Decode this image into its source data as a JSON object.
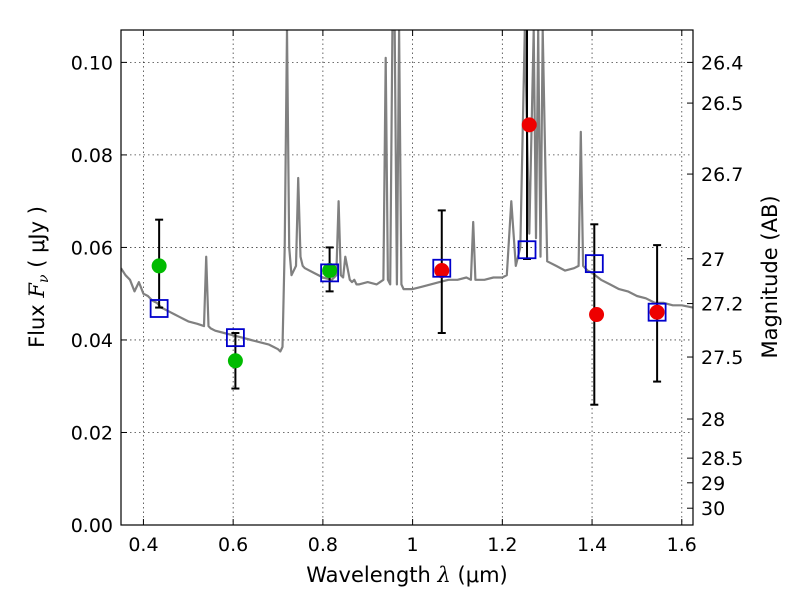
{
  "chart_data": {
    "type": "scatter",
    "xlabel": "Wavelength",
    "xlabel_symbol": "λ",
    "xlabel_unit": "(μm)",
    "ylabel": "Flux",
    "ylabel_symbol": "F",
    "ylabel_sub": "ν",
    "ylabel_unit": "( μJy )",
    "y2label": "Magnitude (AB)",
    "xlim": [
      0.35,
      1.625
    ],
    "ylim": [
      0.0,
      0.107
    ],
    "grid": true,
    "x_ticks": [
      {
        "value": 0.4,
        "label": "0.4"
      },
      {
        "value": 0.6,
        "label": "0.6"
      },
      {
        "value": 0.8,
        "label": "0.8"
      },
      {
        "value": 1.0,
        "label": "1"
      },
      {
        "value": 1.2,
        "label": "1.2"
      },
      {
        "value": 1.4,
        "label": "1.4"
      },
      {
        "value": 1.6,
        "label": "1.6"
      }
    ],
    "y_ticks": [
      {
        "value": 0.0,
        "label": "0.00"
      },
      {
        "value": 0.02,
        "label": "0.02"
      },
      {
        "value": 0.04,
        "label": "0.04"
      },
      {
        "value": 0.06,
        "label": "0.06"
      },
      {
        "value": 0.08,
        "label": "0.08"
      },
      {
        "value": 0.1,
        "label": "0.10"
      }
    ],
    "y2_ticks": [
      {
        "mag": 26.4,
        "label": "26.4"
      },
      {
        "mag": 26.5,
        "label": "26.5"
      },
      {
        "mag": 26.7,
        "label": "26.7"
      },
      {
        "mag": 27.0,
        "label": "27"
      },
      {
        "mag": 27.2,
        "label": "27.2"
      },
      {
        "mag": 27.5,
        "label": "27.5"
      },
      {
        "mag": 28.0,
        "label": "28"
      },
      {
        "mag": 28.5,
        "label": "28.5"
      },
      {
        "mag": 29.0,
        "label": "29"
      },
      {
        "mag": 30.0,
        "label": "30"
      }
    ],
    "series": [
      {
        "type": "line",
        "color": "#808080",
        "x": [
          0.35,
          0.36,
          0.37,
          0.38,
          0.39,
          0.4,
          0.41,
          0.42,
          0.43,
          0.44,
          0.45,
          0.46,
          0.47,
          0.48,
          0.49,
          0.5,
          0.52,
          0.535,
          0.54,
          0.545,
          0.55,
          0.56,
          0.58,
          0.6,
          0.62,
          0.64,
          0.66,
          0.68,
          0.69,
          0.7,
          0.705,
          0.71,
          0.715,
          0.72,
          0.725,
          0.73,
          0.74,
          0.745,
          0.75,
          0.755,
          0.76,
          0.78,
          0.8,
          0.82,
          0.83,
          0.835,
          0.84,
          0.845,
          0.85,
          0.86,
          0.865,
          0.87,
          0.875,
          0.88,
          0.9,
          0.92,
          0.935,
          0.94,
          0.945,
          0.95,
          0.955,
          0.96,
          0.965,
          0.97,
          0.975,
          0.98,
          1.0,
          1.02,
          1.04,
          1.06,
          1.08,
          1.1,
          1.12,
          1.13,
          1.135,
          1.14,
          1.16,
          1.18,
          1.2,
          1.21,
          1.22,
          1.23,
          1.24,
          1.25,
          1.26,
          1.27,
          1.275,
          1.28,
          1.285,
          1.29,
          1.3,
          1.32,
          1.34,
          1.36,
          1.37,
          1.375,
          1.38,
          1.39,
          1.4,
          1.42,
          1.44,
          1.46,
          1.48,
          1.5,
          1.52,
          1.54,
          1.56,
          1.58,
          1.6,
          1.625
        ],
        "y": [
          0.0555,
          0.054,
          0.053,
          0.0505,
          0.0525,
          0.05,
          0.0495,
          0.0485,
          0.048,
          0.047,
          0.0465,
          0.046,
          0.0455,
          0.045,
          0.0445,
          0.044,
          0.0435,
          0.043,
          0.058,
          0.043,
          0.0425,
          0.042,
          0.0415,
          0.041,
          0.0405,
          0.04,
          0.0395,
          0.039,
          0.0385,
          0.038,
          0.0375,
          0.0385,
          0.06,
          0.107,
          0.06,
          0.054,
          0.056,
          0.075,
          0.058,
          0.056,
          0.0555,
          0.0545,
          0.0535,
          0.053,
          0.054,
          0.07,
          0.054,
          0.0535,
          0.058,
          0.053,
          0.0525,
          0.053,
          0.052,
          0.052,
          0.0525,
          0.052,
          0.053,
          0.101,
          0.053,
          0.052,
          0.107,
          0.107,
          0.052,
          0.107,
          0.052,
          0.051,
          0.051,
          0.0515,
          0.052,
          0.0525,
          0.053,
          0.053,
          0.0535,
          0.053,
          0.0655,
          0.053,
          0.053,
          0.0535,
          0.0535,
          0.054,
          0.07,
          0.056,
          0.06,
          0.107,
          0.063,
          0.107,
          0.062,
          0.107,
          0.058,
          0.107,
          0.057,
          0.056,
          0.055,
          0.0555,
          0.056,
          0.085,
          0.056,
          0.055,
          0.0545,
          0.053,
          0.052,
          0.051,
          0.0505,
          0.0495,
          0.049,
          0.048,
          0.048,
          0.0475,
          0.0475,
          0.047
        ]
      },
      {
        "type": "scatter",
        "marker": "circle",
        "color": "#00bb00",
        "x": [
          0.435,
          0.605,
          0.815
        ],
        "y": [
          0.056,
          0.0355,
          0.055
        ]
      },
      {
        "type": "scatter",
        "marker": "circle",
        "color": "#ee0000",
        "x": [
          1.065,
          1.26,
          1.41,
          1.545
        ],
        "y": [
          0.055,
          0.0865,
          0.0455,
          0.046
        ]
      },
      {
        "type": "scatter",
        "marker": "square-open",
        "color": "#0000cc",
        "x": [
          0.435,
          0.605,
          0.815,
          1.065,
          1.255,
          1.405,
          1.545
        ],
        "y": [
          0.0468,
          0.0405,
          0.0545,
          0.0555,
          0.0595,
          0.0565,
          0.046
        ],
        "err_low": [
          0.047,
          0.0295,
          0.0505,
          0.0415,
          0.0575,
          0.026,
          0.031
        ],
        "err_high": [
          0.066,
          0.0415,
          0.06,
          0.068,
          0.107,
          0.065,
          0.0605
        ]
      }
    ]
  }
}
